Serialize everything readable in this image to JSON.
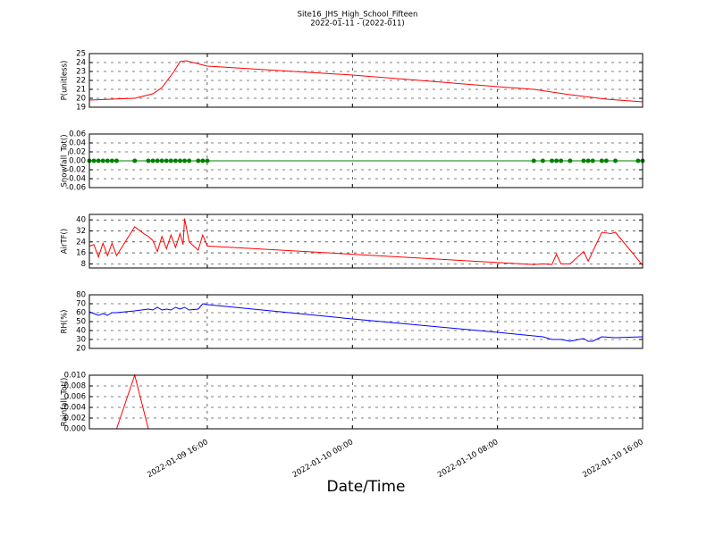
{
  "title": "Site16_JHS_High_School_Fifteen",
  "subtitle": "2022-01-11 - (2022-011)",
  "chart_data": [
    {
      "type": "line",
      "ylabel": "P(unitless)",
      "color": "#ff0000",
      "x": [
        "2022-01-09 09:30",
        "2022-01-09 12:00",
        "2022-01-09 13:00",
        "2022-01-09 13:30",
        "2022-01-09 14:10",
        "2022-01-09 14:30",
        "2022-01-09 14:50",
        "2022-01-09 16:00",
        "2022-01-10 00:00",
        "2022-01-10 08:00",
        "2022-01-10 10:00",
        "2022-01-10 12:00",
        "2022-01-10 14:00",
        "2022-01-10 16:00"
      ],
      "values": [
        19.8,
        20.0,
        20.5,
        21.2,
        23.0,
        24.1,
        24.2,
        23.6,
        22.6,
        21.3,
        21.0,
        20.4,
        19.9,
        19.6
      ],
      "xlim": [
        "2022-01-09 09:30",
        "2022-01-10 16:00"
      ],
      "ylim": [
        19,
        25
      ],
      "yticks": [
        19,
        20,
        21,
        22,
        23,
        24,
        25
      ],
      "grid": true
    },
    {
      "type": "line",
      "ylabel": "Snowfall_Tot()",
      "color": "#008000",
      "marker": "o",
      "x": [
        "2022-01-09 09:30",
        "2022-01-09 09:45",
        "2022-01-09 10:00",
        "2022-01-09 10:15",
        "2022-01-09 10:30",
        "2022-01-09 10:45",
        "2022-01-09 11:00",
        "2022-01-09 12:00",
        "2022-01-09 12:45",
        "2022-01-09 13:00",
        "2022-01-09 13:15",
        "2022-01-09 13:30",
        "2022-01-09 13:45",
        "2022-01-09 14:00",
        "2022-01-09 14:15",
        "2022-01-09 14:30",
        "2022-01-09 14:45",
        "2022-01-09 15:00",
        "2022-01-09 15:30",
        "2022-01-09 15:45",
        "2022-01-09 16:00",
        "2022-01-10 10:00",
        "2022-01-10 10:30",
        "2022-01-10 11:00",
        "2022-01-10 11:15",
        "2022-01-10 11:30",
        "2022-01-10 12:00",
        "2022-01-10 12:45",
        "2022-01-10 13:00",
        "2022-01-10 13:15",
        "2022-01-10 13:45",
        "2022-01-10 14:00",
        "2022-01-10 14:30",
        "2022-01-10 15:45",
        "2022-01-10 16:00"
      ],
      "values": [
        0,
        0,
        0,
        0,
        0,
        0,
        0,
        0,
        0,
        0,
        0,
        0,
        0,
        0,
        0,
        0,
        0,
        0,
        0,
        0,
        0,
        0,
        0,
        0,
        0,
        0,
        0,
        0,
        0,
        0,
        0,
        0,
        0,
        0,
        0
      ],
      "xlim": [
        "2022-01-09 09:30",
        "2022-01-10 16:00"
      ],
      "ylim": [
        -0.06,
        0.06
      ],
      "yticks": [
        -0.06,
        -0.04,
        -0.02,
        {
          "value": 0,
          "label": "0.00"
        },
        0.02,
        0.04,
        0.06
      ],
      "grid": true
    },
    {
      "type": "line",
      "ylabel": "AirTF()",
      "color": "#ff0000",
      "x": [
        "2022-01-09 09:30",
        "2022-01-09 09:45",
        "2022-01-09 10:00",
        "2022-01-09 10:15",
        "2022-01-09 10:30",
        "2022-01-09 10:45",
        "2022-01-09 11:00",
        "2022-01-09 12:00",
        "2022-01-09 12:30",
        "2022-01-09 12:45",
        "2022-01-09 13:00",
        "2022-01-09 13:15",
        "2022-01-09 13:30",
        "2022-01-09 13:45",
        "2022-01-09 14:00",
        "2022-01-09 14:15",
        "2022-01-09 14:30",
        "2022-01-09 14:40",
        "2022-01-09 14:45",
        "2022-01-09 15:00",
        "2022-01-09 15:30",
        "2022-01-09 15:45",
        "2022-01-09 16:00",
        "2022-01-10 00:00",
        "2022-01-10 08:00",
        "2022-01-10 10:00",
        "2022-01-10 10:30",
        "2022-01-10 11:00",
        "2022-01-10 11:15",
        "2022-01-10 11:30",
        "2022-01-10 12:00",
        "2022-01-10 12:45",
        "2022-01-10 13:00",
        "2022-01-10 13:45",
        "2022-01-10 14:15",
        "2022-01-10 14:30",
        "2022-01-10 16:00"
      ],
      "values": [
        21,
        22,
        13,
        23,
        14,
        23,
        14,
        35,
        30,
        28,
        25,
        17,
        28,
        19,
        29,
        20,
        30,
        22,
        41,
        24,
        18,
        29,
        21,
        15,
        9,
        7.5,
        8,
        7.5,
        15,
        8,
        8,
        17,
        10,
        31,
        30,
        31,
        7
      ],
      "xlim": [
        "2022-01-09 09:30",
        "2022-01-10 16:00"
      ],
      "ylim": [
        5,
        44
      ],
      "yticks": [
        8,
        16,
        24,
        32,
        40
      ],
      "grid": true
    },
    {
      "type": "line",
      "ylabel": "RH(%)",
      "color": "#0000ff",
      "x": [
        "2022-01-09 09:30",
        "2022-01-09 09:45",
        "2022-01-09 10:00",
        "2022-01-09 10:15",
        "2022-01-09 10:30",
        "2022-01-09 10:45",
        "2022-01-09 11:00",
        "2022-01-09 12:00",
        "2022-01-09 12:45",
        "2022-01-09 13:00",
        "2022-01-09 13:15",
        "2022-01-09 13:30",
        "2022-01-09 13:45",
        "2022-01-09 14:00",
        "2022-01-09 14:15",
        "2022-01-09 14:30",
        "2022-01-09 14:45",
        "2022-01-09 15:00",
        "2022-01-09 15:30",
        "2022-01-09 15:45",
        "2022-01-09 16:00",
        "2022-01-10 00:00",
        "2022-01-10 08:00",
        "2022-01-10 10:00",
        "2022-01-10 10:30",
        "2022-01-10 11:00",
        "2022-01-10 11:30",
        "2022-01-10 12:00",
        "2022-01-10 12:45",
        "2022-01-10 13:00",
        "2022-01-10 13:15",
        "2022-01-10 13:45",
        "2022-01-10 14:30",
        "2022-01-10 16:00"
      ],
      "values": [
        61,
        59,
        57,
        59,
        57,
        60,
        60,
        62,
        64,
        63,
        66,
        63,
        64,
        63,
        66,
        64,
        66,
        63,
        64,
        70,
        69,
        53,
        38,
        34,
        33,
        30,
        30,
        28,
        31,
        28,
        28,
        33,
        32,
        33
      ],
      "xlim": [
        "2022-01-09 09:30",
        "2022-01-10 16:00"
      ],
      "ylim": [
        20,
        80
      ],
      "yticks": [
        20,
        30,
        40,
        50,
        60,
        70,
        80
      ],
      "grid": true
    },
    {
      "type": "line",
      "ylabel": "Rainfall_Tot()",
      "color": "#ff0000",
      "xlabel": "Date/Time",
      "x": [
        "2022-01-09 09:30",
        "2022-01-09 11:00",
        "2022-01-09 12:00",
        "2022-01-09 12:45",
        "2022-01-10 16:00"
      ],
      "values": [
        0,
        0,
        0.01,
        0,
        0
      ],
      "xlim": [
        "2022-01-09 09:30",
        "2022-01-10 16:00"
      ],
      "ylim": [
        0,
        0.01
      ],
      "yticks": [
        {
          "value": 0,
          "label": "0.000"
        },
        0.002,
        0.004,
        0.006,
        0.008,
        {
          "value": 0.01,
          "label": "0.010"
        }
      ],
      "xticks": [
        "2022-01-09 16:00",
        "2022-01-10 00:00",
        "2022-01-10 08:00",
        "2022-01-10 16:00"
      ],
      "grid": true
    }
  ]
}
